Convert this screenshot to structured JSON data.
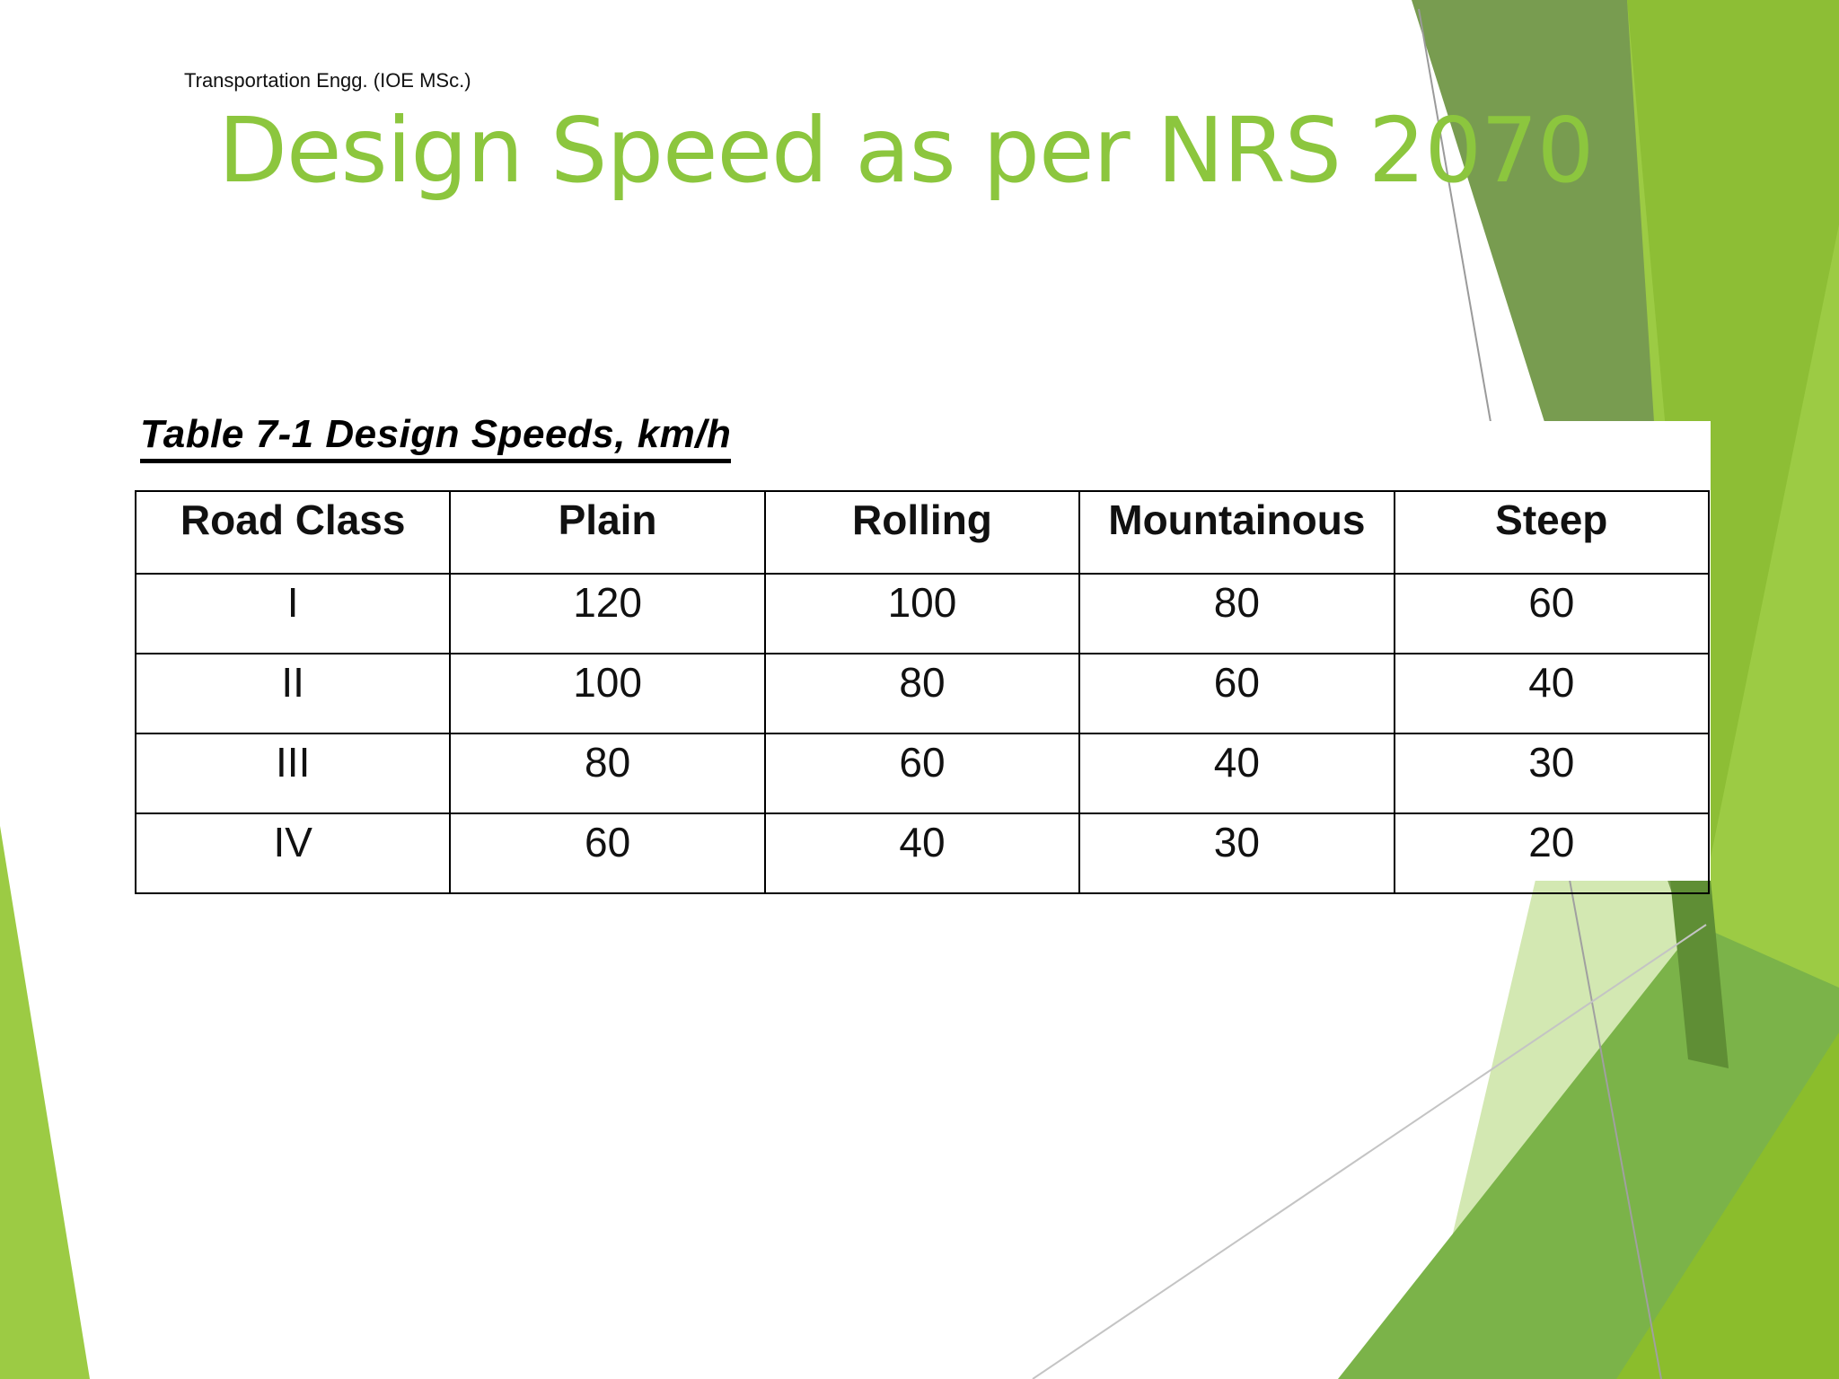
{
  "header": {
    "label": "Transportation Engg. (IOE MSc.)"
  },
  "slide": {
    "title": "Design Speed as per NRS 2070"
  },
  "table": {
    "caption": "Table 7-1 Design Speeds, km/h",
    "columns": [
      "Road Class",
      "Plain",
      "Rolling",
      "Mountainous",
      "Steep"
    ],
    "rows": [
      [
        "I",
        "120",
        "100",
        "80",
        "60"
      ],
      [
        "II",
        "100",
        "80",
        "60",
        "40"
      ],
      [
        "III",
        "80",
        "60",
        "40",
        "30"
      ],
      [
        "IV",
        "60",
        "40",
        "30",
        "20"
      ]
    ]
  },
  "theme": {
    "title_color": "#8cc63e",
    "accent_dark": "#6f9a4a",
    "accent_light": "#9cc948",
    "accent_pale": "#cfe5ab"
  }
}
